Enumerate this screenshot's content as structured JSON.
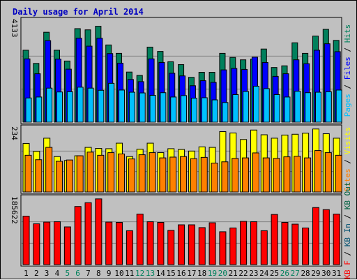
{
  "chart_data": {
    "type": "bar",
    "title": "Daily usage for April 2014",
    "days": [
      "1",
      "2",
      "3",
      "4",
      "5",
      "6",
      "7",
      "8",
      "9",
      "10",
      "11",
      "12",
      "13",
      "14",
      "15",
      "16",
      "17",
      "18",
      "19",
      "20",
      "21",
      "22",
      "23",
      "24",
      "25",
      "26",
      "27",
      "28",
      "29",
      "30",
      "31"
    ],
    "weekend_days": [
      "5",
      "6",
      "12",
      "13",
      "19",
      "20",
      "26",
      "27"
    ],
    "panels": [
      {
        "id": "top",
        "max_label": "4133",
        "ymax": 4133,
        "series": [
          {
            "name": "Hits",
            "color": "#00805c",
            "values": [
              3000,
              2450,
              3750,
              3000,
              2550,
              3900,
              3850,
              4000,
              3220,
              2870,
              2090,
              1950,
              3130,
              2950,
              2520,
              2400,
              1870,
              2080,
              2080,
              2870,
              2700,
              2600,
              2630,
              3050,
              2280,
              2350,
              3310,
              2870,
              3590,
              3870,
              3410
            ]
          },
          {
            "name": "Files",
            "color": "#0000ff",
            "values": [
              2640,
              2020,
              3400,
              2630,
              2210,
              3500,
              3170,
              3500,
              2860,
              2460,
              1780,
              1690,
              2640,
              2490,
              2040,
              1930,
              1520,
              1730,
              1660,
              2180,
              2240,
              2200,
              2710,
              2490,
              1910,
              2020,
              2600,
              2440,
              3000,
              3270,
              2940
            ]
          },
          {
            "name": "Pages",
            "color": "#00c0ff",
            "values": [
              1010,
              1050,
              1420,
              1260,
              1270,
              1460,
              1420,
              1330,
              1620,
              1340,
              1250,
              1220,
              1120,
              1230,
              1050,
              1110,
              1000,
              1020,
              930,
              820,
              1150,
              1280,
              1500,
              1400,
              1150,
              1050,
              1290,
              1230,
              1250,
              1270,
              1340
            ]
          }
        ]
      },
      {
        "id": "middle",
        "max_label": "234",
        "ymax": 234,
        "series": [
          {
            "name": "Visits",
            "color": "#ffff00",
            "values": [
              185,
              155,
              205,
              135,
              120,
              138,
              170,
              166,
              165,
              186,
              135,
              163,
              186,
              150,
              165,
              162,
              156,
              172,
              170,
              230,
              225,
              200,
              236,
              218,
              205,
              217,
              220,
              224,
              240,
              222,
              205
            ]
          },
          {
            "name": "Sites",
            "color": "#ff8000",
            "values": [
              140,
              123,
              170,
              117,
              122,
              138,
              152,
              140,
              150,
              145,
              126,
              142,
              150,
              130,
              133,
              135,
              127,
              132,
              110,
              115,
              128,
              130,
              149,
              130,
              128,
              134,
              136,
              130,
              158,
              150,
              140
            ]
          }
        ]
      },
      {
        "id": "bottom",
        "max_label": "185622",
        "ymax": 185622,
        "series": [
          {
            "name": "KB F",
            "color": "#ff0000",
            "values": [
              140000,
              118000,
              123000,
              124000,
              109000,
              168000,
              179000,
              190000,
              123000,
              122000,
              98000,
              146000,
              124000,
              122000,
              99000,
              115000,
              115000,
              107000,
              121000,
              95000,
              106000,
              125000,
              124000,
              98000,
              145000,
              122000,
              117000,
              106000,
              165000,
              159000,
              146000
            ]
          }
        ]
      }
    ],
    "right_labels": {
      "top": [
        {
          "text": "Pages",
          "color": "#00c0ff"
        },
        {
          "text": " / ",
          "color": "#000000"
        },
        {
          "text": "Files",
          "color": "#0000ff"
        },
        {
          "text": " / ",
          "color": "#000000"
        },
        {
          "text": "Hits",
          "color": "#00805c"
        }
      ],
      "middle": [
        {
          "text": "Sites",
          "color": "#ff8000"
        },
        {
          "text": " / ",
          "color": "#000000"
        },
        {
          "text": "Visits",
          "color": "#ffff00"
        }
      ],
      "bottom": [
        {
          "text": "KB F",
          "color": "#ff0000"
        },
        {
          "text": " / ",
          "color": "#000000"
        },
        {
          "text": "KB In",
          "color": "#005070"
        },
        {
          "text": " / ",
          "color": "#000000"
        },
        {
          "text": "KB Out",
          "color": "#006040"
        }
      ]
    },
    "colors": {
      "background": "#c0c0c0",
      "title": "#0000c0",
      "weekday_label": "#000000",
      "weekend_label": "#00805c",
      "gridline": "#808080"
    }
  }
}
